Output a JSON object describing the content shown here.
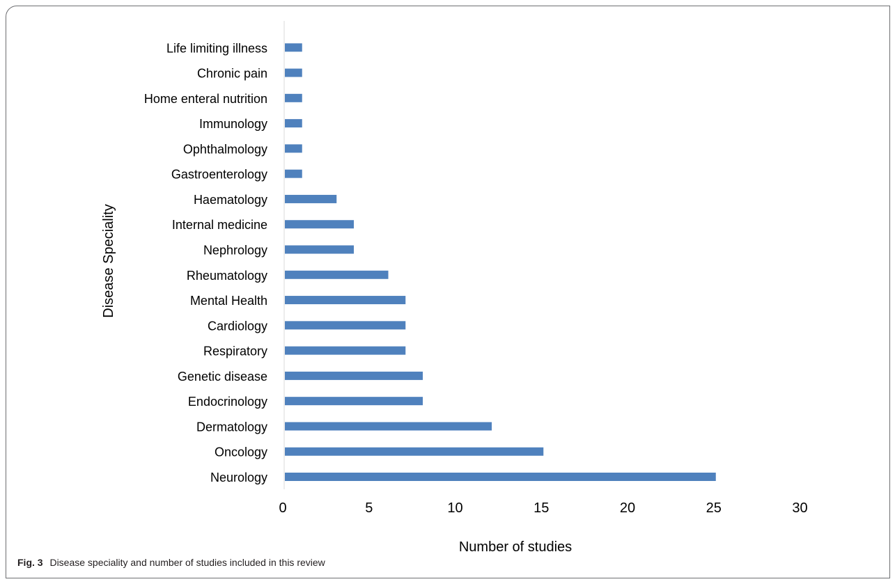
{
  "figure": {
    "caption_label": "Fig. 3",
    "caption_text": "Disease speciality and number of studies included in this review"
  },
  "chart_data": {
    "type": "bar",
    "orientation": "horizontal",
    "categories": [
      "Neurology",
      "Oncology",
      "Dermatology",
      "Endocrinology",
      "Genetic disease",
      "Respiratory",
      "Cardiology",
      "Mental Health",
      "Rheumatology",
      "Nephrology",
      "Internal medicine",
      "Haematology",
      "Gastroenterology",
      "Ophthalmology",
      "Immunology",
      "Home enteral nutrition",
      "Chronic pain",
      "Life limiting illness"
    ],
    "values": [
      25,
      15,
      12,
      8,
      8,
      7,
      7,
      7,
      6,
      4,
      4,
      3,
      1,
      1,
      1,
      1,
      1,
      1
    ],
    "xlabel": "Number of studies",
    "ylabel": "Disease Speciality",
    "xlim": [
      0,
      30
    ],
    "xticks": [
      0,
      5,
      10,
      15,
      20,
      25,
      30
    ],
    "grid": false,
    "legend": "none",
    "bar_color": "#4f81bd",
    "axis_color": "#d9d9d9"
  }
}
